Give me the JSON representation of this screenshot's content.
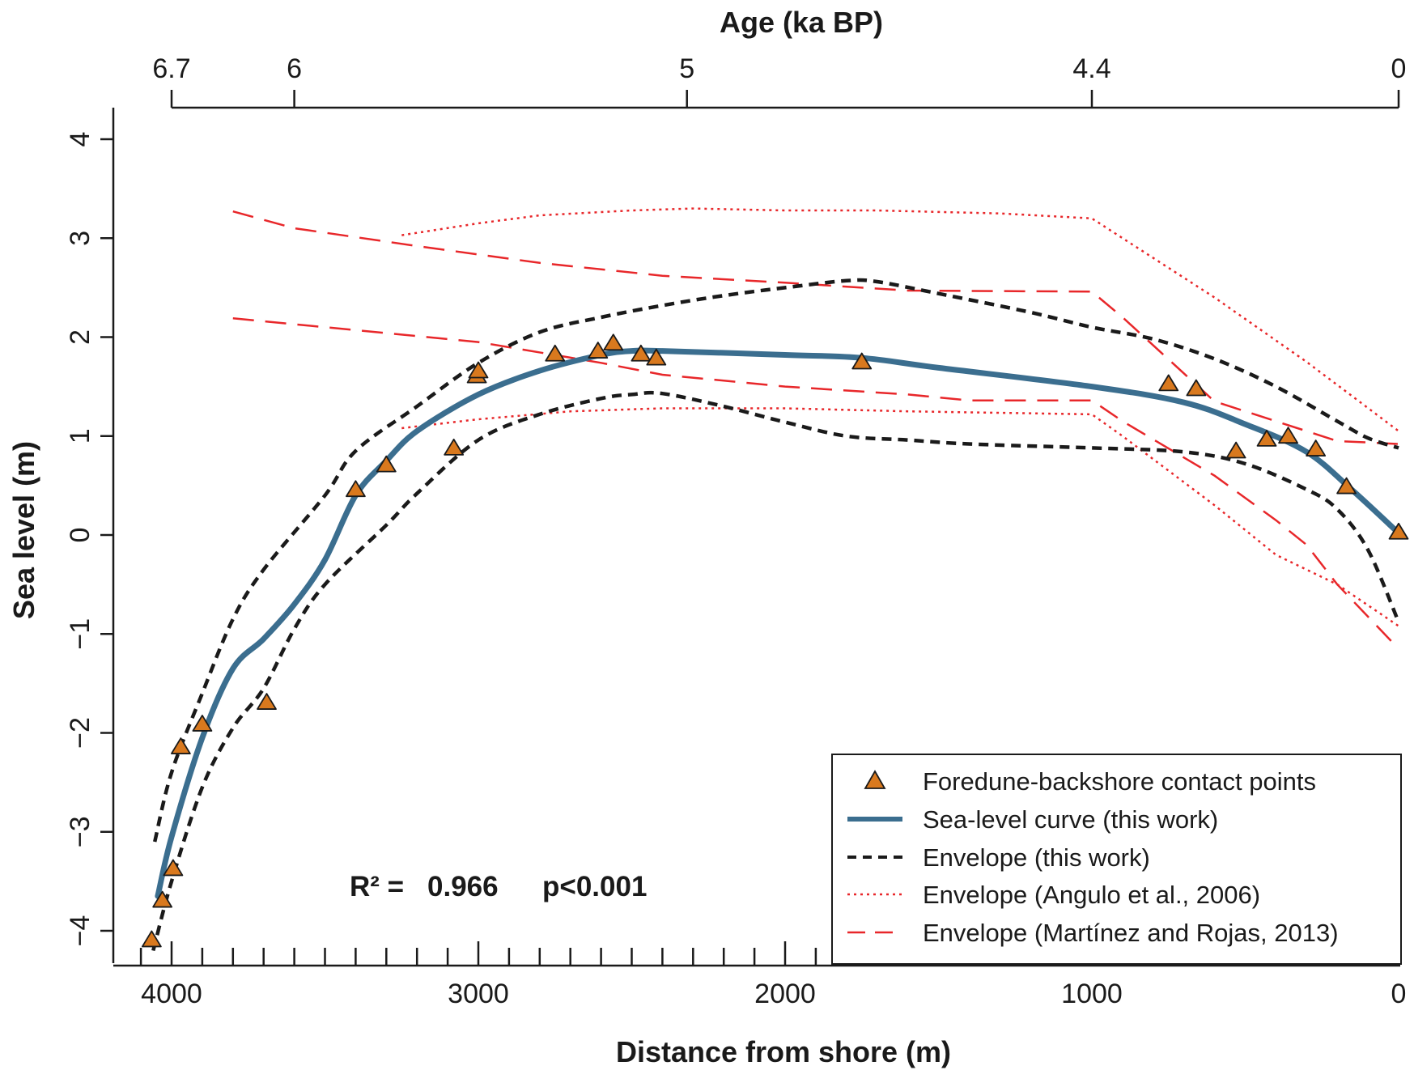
{
  "chart_data": {
    "type": "line",
    "xlabel": "Distance from shore (m)",
    "ylabel": "Sea level (m)",
    "top_axis_label": "Age (ka BP)",
    "xlim": [
      4100,
      0
    ],
    "ylim": [
      -4.35,
      4.3
    ],
    "x_ticks": [
      4000,
      3000,
      2000,
      1000,
      0
    ],
    "x_minor_step": 100,
    "y_ticks": [
      4,
      3,
      2,
      1,
      0,
      -1,
      -2,
      -3,
      -4
    ],
    "y_tick_labels": [
      "4",
      "3",
      "2",
      "1",
      "0",
      "−1",
      "−2",
      "−3",
      "−4"
    ],
    "top_ticks": [
      {
        "x": 4000,
        "label": "6.7"
      },
      {
        "x": 3600,
        "label": "6"
      },
      {
        "x": 2320,
        "label": "5"
      },
      {
        "x": 1000,
        "label": "4.4"
      },
      {
        "x": 0,
        "label": "0"
      }
    ],
    "grid": false,
    "legend_position": "bottom-right",
    "annotation": {
      "r2_label": "R² =",
      "r2_value": "0.966",
      "p_value": "p<0.001"
    },
    "colors": {
      "points": "#d9791e",
      "curve": "#3b6e8f",
      "envelope_this_work": "#1a1a1a",
      "envelope_angulo": "#e8272a",
      "envelope_martinez": "#e8272a"
    },
    "series": [
      {
        "name": "Foredune-backshore contact points",
        "kind": "scatter",
        "points": [
          [
            4065,
            -4.1
          ],
          [
            4030,
            -3.7
          ],
          [
            3995,
            -3.38
          ],
          [
            3970,
            -2.15
          ],
          [
            3900,
            -1.92
          ],
          [
            3690,
            -1.7
          ],
          [
            3400,
            0.45
          ],
          [
            3300,
            0.7
          ],
          [
            3080,
            0.87
          ],
          [
            3005,
            1.6
          ],
          [
            3000,
            1.65
          ],
          [
            2750,
            1.82
          ],
          [
            2610,
            1.85
          ],
          [
            2560,
            1.93
          ],
          [
            2470,
            1.82
          ],
          [
            2420,
            1.78
          ],
          [
            1750,
            1.74
          ],
          [
            750,
            1.52
          ],
          [
            660,
            1.47
          ],
          [
            530,
            0.84
          ],
          [
            430,
            0.96
          ],
          [
            360,
            0.99
          ],
          [
            270,
            0.86
          ],
          [
            170,
            0.48
          ],
          [
            0,
            0.02
          ]
        ]
      },
      {
        "name": "Sea-level curve (this work)",
        "kind": "line",
        "points": [
          [
            4045,
            -3.65
          ],
          [
            4000,
            -3.05
          ],
          [
            3900,
            -2.05
          ],
          [
            3800,
            -1.35
          ],
          [
            3700,
            -1.05
          ],
          [
            3600,
            -0.7
          ],
          [
            3500,
            -0.25
          ],
          [
            3400,
            0.4
          ],
          [
            3300,
            0.75
          ],
          [
            3200,
            1.05
          ],
          [
            3000,
            1.42
          ],
          [
            2800,
            1.66
          ],
          [
            2600,
            1.82
          ],
          [
            2500,
            1.86
          ],
          [
            2400,
            1.86
          ],
          [
            2000,
            1.82
          ],
          [
            1750,
            1.79
          ],
          [
            1500,
            1.69
          ],
          [
            1000,
            1.5
          ],
          [
            700,
            1.34
          ],
          [
            500,
            1.12
          ],
          [
            300,
            0.84
          ],
          [
            150,
            0.45
          ],
          [
            0,
            0.02
          ]
        ]
      },
      {
        "name": "Envelope (this work)",
        "kind": "line",
        "style": "dashed",
        "points_upper": [
          [
            4055,
            -3.1
          ],
          [
            4000,
            -2.4
          ],
          [
            3900,
            -1.6
          ],
          [
            3800,
            -0.85
          ],
          [
            3700,
            -0.35
          ],
          [
            3500,
            0.4
          ],
          [
            3400,
            0.85
          ],
          [
            3200,
            1.3
          ],
          [
            3000,
            1.74
          ],
          [
            2800,
            2.05
          ],
          [
            2600,
            2.2
          ],
          [
            2400,
            2.32
          ],
          [
            2200,
            2.42
          ],
          [
            2000,
            2.5
          ],
          [
            1800,
            2.57
          ],
          [
            1700,
            2.56
          ],
          [
            1500,
            2.44
          ],
          [
            1200,
            2.25
          ],
          [
            1000,
            2.1
          ],
          [
            800,
            1.98
          ],
          [
            600,
            1.78
          ],
          [
            400,
            1.5
          ],
          [
            200,
            1.15
          ],
          [
            100,
            0.98
          ],
          [
            0,
            0.88
          ]
        ],
        "points_lower": [
          [
            4060,
            -4.2
          ],
          [
            4000,
            -3.5
          ],
          [
            3900,
            -2.55
          ],
          [
            3800,
            -1.95
          ],
          [
            3700,
            -1.55
          ],
          [
            3600,
            -0.95
          ],
          [
            3500,
            -0.5
          ],
          [
            3300,
            0.1
          ],
          [
            3200,
            0.42
          ],
          [
            3000,
            0.96
          ],
          [
            2800,
            1.22
          ],
          [
            2600,
            1.38
          ],
          [
            2500,
            1.42
          ],
          [
            2400,
            1.43
          ],
          [
            2200,
            1.3
          ],
          [
            2000,
            1.14
          ],
          [
            1800,
            1.0
          ],
          [
            1600,
            0.96
          ],
          [
            1400,
            0.92
          ],
          [
            1000,
            0.88
          ],
          [
            700,
            0.84
          ],
          [
            500,
            0.72
          ],
          [
            300,
            0.46
          ],
          [
            200,
            0.26
          ],
          [
            100,
            -0.15
          ],
          [
            0,
            -0.88
          ]
        ]
      },
      {
        "name": "Envelope (Angulo et al., 2006)",
        "kind": "line",
        "style": "dotted",
        "points_upper": [
          [
            3250,
            3.03
          ],
          [
            3000,
            3.15
          ],
          [
            2800,
            3.23
          ],
          [
            2500,
            3.28
          ],
          [
            2300,
            3.3
          ],
          [
            2000,
            3.28
          ],
          [
            1700,
            3.28
          ],
          [
            1300,
            3.25
          ],
          [
            1000,
            3.2
          ],
          [
            600,
            2.4
          ],
          [
            300,
            1.75
          ],
          [
            0,
            1.05
          ]
        ],
        "points_lower": [
          [
            3250,
            1.08
          ],
          [
            3000,
            1.17
          ],
          [
            2700,
            1.25
          ],
          [
            2400,
            1.28
          ],
          [
            2000,
            1.28
          ],
          [
            1600,
            1.25
          ],
          [
            1000,
            1.22
          ],
          [
            900,
            1.0
          ],
          [
            600,
            0.3
          ],
          [
            400,
            -0.2
          ],
          [
            200,
            -0.5
          ],
          [
            0,
            -0.92
          ]
        ]
      },
      {
        "name": "Envelope (Martínez and Rojas, 2013)",
        "kind": "line",
        "style": "long-dashed",
        "points_upper": [
          [
            3800,
            3.27
          ],
          [
            3600,
            3.1
          ],
          [
            3200,
            2.92
          ],
          [
            2800,
            2.75
          ],
          [
            2400,
            2.62
          ],
          [
            2000,
            2.55
          ],
          [
            1600,
            2.47
          ],
          [
            1000,
            2.46
          ],
          [
            900,
            2.2
          ],
          [
            600,
            1.35
          ],
          [
            400,
            1.15
          ],
          [
            200,
            0.95
          ],
          [
            0,
            0.92
          ]
        ],
        "points_lower": [
          [
            3800,
            2.19
          ],
          [
            3400,
            2.07
          ],
          [
            3000,
            1.95
          ],
          [
            2600,
            1.74
          ],
          [
            2400,
            1.62
          ],
          [
            2000,
            1.5
          ],
          [
            1600,
            1.42
          ],
          [
            1400,
            1.36
          ],
          [
            1000,
            1.36
          ],
          [
            900,
            1.15
          ],
          [
            600,
            0.6
          ],
          [
            400,
            0.15
          ],
          [
            300,
            -0.1
          ],
          [
            200,
            -0.5
          ],
          [
            0,
            -1.15
          ]
        ]
      }
    ]
  }
}
